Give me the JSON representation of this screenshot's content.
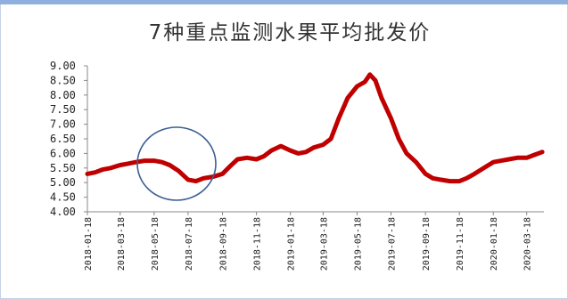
{
  "chart_data": {
    "type": "line",
    "title": "7种重点监测水果平均批发价",
    "xlabel": "",
    "ylabel": "",
    "ylim": [
      4.0,
      9.0
    ],
    "y_ticks": [
      "4.00",
      "4.50",
      "5.00",
      "5.50",
      "6.00",
      "6.50",
      "7.00",
      "7.50",
      "8.00",
      "8.50",
      "9.00"
    ],
    "x_ticks": [
      "2018-01-18",
      "2018-03-18",
      "2018-05-18",
      "2018-07-18",
      "2018-09-18",
      "2018-11-18",
      "2019-01-18",
      "2019-03-18",
      "2019-05-18",
      "2019-07-18",
      "2019-09-18",
      "2019-11-18",
      "2020-01-18",
      "2020-03-18"
    ],
    "x_range": [
      "2018-01-18",
      "2020-04-18"
    ],
    "grid": false,
    "legend": "none",
    "line_color": "#c00000",
    "series": [
      {
        "name": "",
        "x": [
          "2018-01-18",
          "2018-02-01",
          "2018-02-15",
          "2018-03-01",
          "2018-03-18",
          "2018-04-01",
          "2018-04-15",
          "2018-05-01",
          "2018-05-18",
          "2018-06-01",
          "2018-06-15",
          "2018-07-01",
          "2018-07-18",
          "2018-08-01",
          "2018-08-15",
          "2018-09-01",
          "2018-09-18",
          "2018-10-01",
          "2018-10-15",
          "2018-11-01",
          "2018-11-18",
          "2018-12-01",
          "2018-12-15",
          "2019-01-01",
          "2019-01-18",
          "2019-02-01",
          "2019-02-15",
          "2019-03-01",
          "2019-03-18",
          "2019-04-01",
          "2019-04-15",
          "2019-05-01",
          "2019-05-18",
          "2019-06-01",
          "2019-06-10",
          "2019-06-20",
          "2019-07-01",
          "2019-07-18",
          "2019-08-01",
          "2019-08-15",
          "2019-09-01",
          "2019-09-18",
          "2019-10-01",
          "2019-10-15",
          "2019-11-01",
          "2019-11-18",
          "2019-12-01",
          "2019-12-15",
          "2020-01-01",
          "2020-01-18",
          "2020-02-01",
          "2020-02-15",
          "2020-03-01",
          "2020-03-18",
          "2020-04-01",
          "2020-04-15"
        ],
        "y": [
          5.3,
          5.35,
          5.45,
          5.5,
          5.6,
          5.65,
          5.7,
          5.75,
          5.75,
          5.7,
          5.6,
          5.4,
          5.1,
          5.05,
          5.15,
          5.2,
          5.3,
          5.55,
          5.8,
          5.85,
          5.8,
          5.9,
          6.1,
          6.25,
          6.1,
          6.0,
          6.05,
          6.2,
          6.3,
          6.5,
          7.2,
          7.9,
          8.3,
          8.45,
          8.7,
          8.5,
          7.9,
          7.2,
          6.5,
          6.0,
          5.7,
          5.3,
          5.15,
          5.1,
          5.05,
          5.05,
          5.15,
          5.3,
          5.5,
          5.7,
          5.75,
          5.8,
          5.85,
          5.85,
          5.95,
          6.05
        ]
      }
    ]
  }
}
